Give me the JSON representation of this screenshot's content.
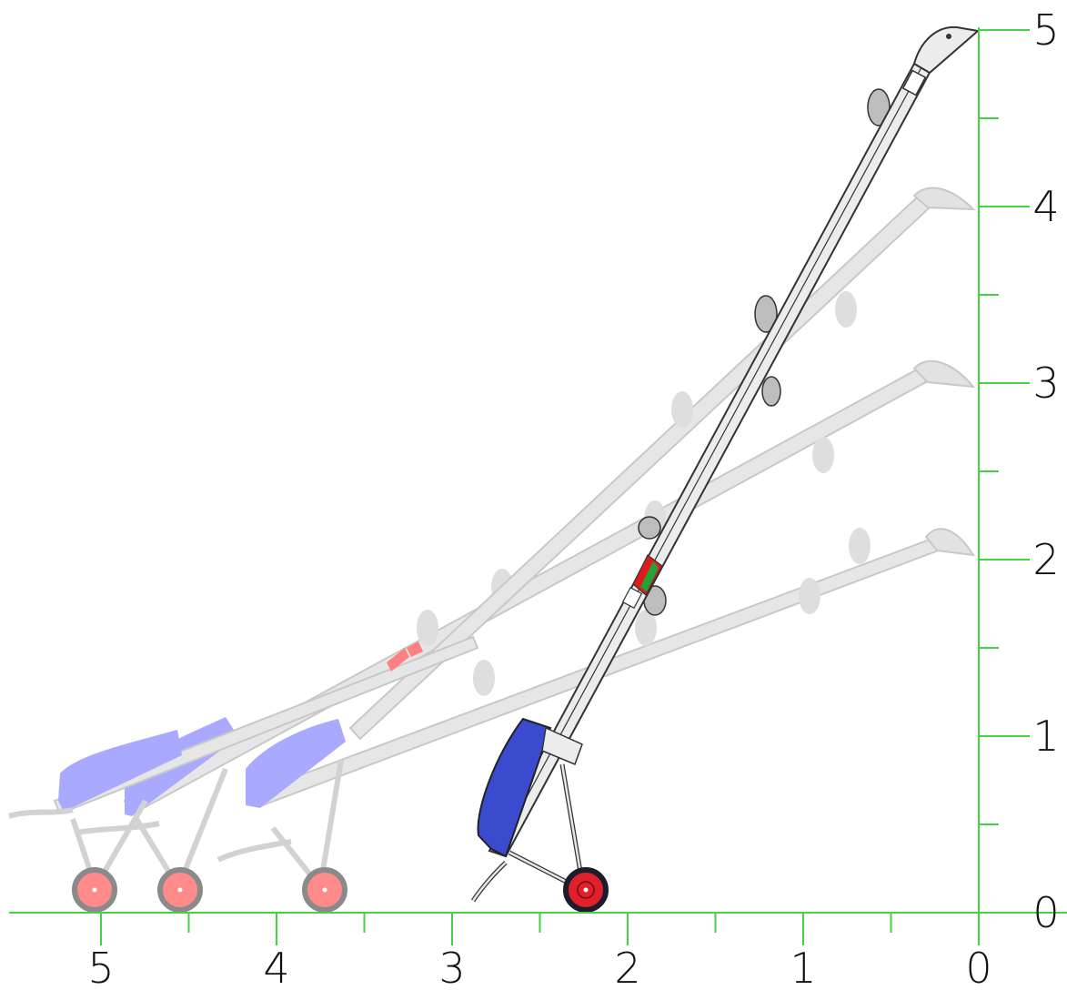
{
  "axes": {
    "x_ticks": [
      {
        "value": 5,
        "label": "5"
      },
      {
        "value": 4,
        "label": "4"
      },
      {
        "value": 3,
        "label": "3"
      },
      {
        "value": 2,
        "label": "2"
      },
      {
        "value": 1,
        "label": "1"
      },
      {
        "value": 0,
        "label": "0"
      }
    ],
    "y_ticks": [
      {
        "value": 0,
        "label": "0"
      },
      {
        "value": 1,
        "label": "1"
      },
      {
        "value": 2,
        "label": "2"
      },
      {
        "value": 3,
        "label": "3"
      },
      {
        "value": 4,
        "label": "4"
      },
      {
        "value": 5,
        "label": "5"
      }
    ],
    "x_range": [
      0,
      5.5
    ],
    "y_range": [
      0,
      5
    ],
    "x_reversed": true,
    "minor_ticks": true,
    "axis_color": "#45d345"
  },
  "conveyors": [
    {
      "name": "position-2m",
      "discharge_height": 2,
      "state": "ghost",
      "hopper_color": "#a9a9ff",
      "wheel_color": "#ff8a8a"
    },
    {
      "name": "position-3m",
      "discharge_height": 3,
      "state": "ghost",
      "hopper_color": "#a9a9ff",
      "wheel_color": "#ff8a8a"
    },
    {
      "name": "position-4m",
      "discharge_height": 4,
      "state": "ghost",
      "hopper_color": "#a9a9ff",
      "wheel_color": "#ff8a8a"
    },
    {
      "name": "position-5m",
      "discharge_height": 5,
      "state": "active",
      "hopper_color": "#3b4bd0",
      "wheel_color": "#e0202a"
    }
  ],
  "colors": {
    "ghost_body": "#e6e6e6",
    "ghost_stroke": "#c8c8c8",
    "active_body": "#ececec",
    "active_stroke": "#333333",
    "ghost_flight": "#dcdcdc",
    "active_flight": "#bdbdbd",
    "warning_red": "#ff8080",
    "active_red": "#dd1c1c",
    "active_green": "#22a33a"
  }
}
